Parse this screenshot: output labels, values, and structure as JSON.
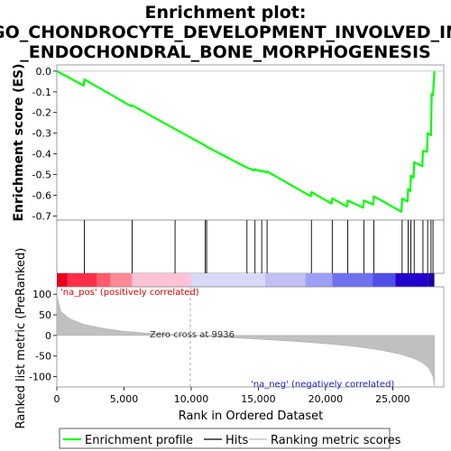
{
  "chart_data": {
    "type": "line",
    "title_lines": [
      "Enrichment plot:",
      "GO_CHONDROCYTE_DEVELOPMENT_INVOLVED_IN",
      "_ENDOCHONDRAL_BONE_MORPHOGENESIS"
    ],
    "xlabel": "Rank in Ordered Dataset",
    "ylabel_top": "Enrichment score (ES)",
    "ylabel_bottom": "Ranked list metric (PreRanked)",
    "xlim": [
      0,
      28800
    ],
    "x_ticks": [
      "0",
      "5,000",
      "10,000",
      "15,000",
      "20,000",
      "25,000"
    ],
    "x_tick_values": [
      0,
      5000,
      10000,
      15000,
      20000,
      25000
    ],
    "es_ylim": [
      -0.72,
      0.03
    ],
    "es_y_ticks": [
      "0.0",
      "-0.1",
      "-0.2",
      "-0.3",
      "-0.4",
      "-0.5",
      "-0.6",
      "-0.7"
    ],
    "es_y_tick_values": [
      0.0,
      -0.1,
      -0.2,
      -0.3,
      -0.4,
      -0.5,
      -0.6,
      -0.7
    ],
    "metric_ylim": [
      -125,
      118
    ],
    "metric_y_ticks": [
      "100",
      "50",
      "0",
      "-50",
      "-100"
    ],
    "metric_y_tick_values": [
      100,
      50,
      0,
      -50,
      -100
    ],
    "series": [
      {
        "name": "Enrichment profile",
        "color": "#00ff00",
        "x": [
          0,
          2000,
          2050,
          5550,
          5600,
          8800,
          11050,
          11150,
          14100,
          14700,
          14750,
          15200,
          15250,
          15600,
          15650,
          18900,
          18950,
          20450,
          20500,
          21600,
          21650,
          22800,
          22850,
          23550,
          23600,
          25650,
          25700,
          26100,
          26150,
          26300,
          26350,
          26550,
          26600,
          27200,
          27250,
          27550,
          27600,
          27850,
          27900,
          28000,
          28100
        ],
        "y": [
          0.0,
          -0.07,
          -0.04,
          -0.17,
          -0.165,
          -0.28,
          -0.36,
          -0.365,
          -0.465,
          -0.48,
          -0.475,
          -0.485,
          -0.48,
          -0.49,
          -0.485,
          -0.605,
          -0.585,
          -0.64,
          -0.615,
          -0.655,
          -0.625,
          -0.66,
          -0.625,
          -0.645,
          -0.605,
          -0.68,
          -0.615,
          -0.63,
          -0.57,
          -0.58,
          -0.505,
          -0.515,
          -0.44,
          -0.46,
          -0.385,
          -0.39,
          -0.3,
          -0.31,
          -0.11,
          -0.115,
          0.0
        ]
      }
    ],
    "hits": [
      2050,
      5600,
      8800,
      11050,
      11150,
      14150,
      14750,
      15250,
      15650,
      18950,
      20500,
      21650,
      22850,
      23600,
      25700,
      26150,
      26350,
      26600,
      27250,
      27600,
      27850,
      28000
    ],
    "zero_cross": 9936,
    "zero_cross_label": "Zero cross at 9936",
    "pos_label": "'na_pos' (positively correlated)",
    "neg_label": "'na_neg' (negatively correlated)",
    "colorbar": [
      {
        "x0": 0,
        "x1": 800,
        "color": "#e8001c"
      },
      {
        "x0": 800,
        "x1": 3000,
        "color": "#ff2d47"
      },
      {
        "x0": 3000,
        "x1": 4000,
        "color": "#ff5a6e"
      },
      {
        "x0": 4000,
        "x1": 5600,
        "color": "#ff8a97"
      },
      {
        "x0": 5600,
        "x1": 10000,
        "color": "#ffc2d6"
      },
      {
        "x0": 10000,
        "x1": 15500,
        "color": "#d8d8f8"
      },
      {
        "x0": 15500,
        "x1": 18500,
        "color": "#c0c0f5"
      },
      {
        "x0": 18500,
        "x1": 20500,
        "color": "#9e9ef5"
      },
      {
        "x0": 20500,
        "x1": 23500,
        "color": "#7070ee"
      },
      {
        "x0": 23500,
        "x1": 25200,
        "color": "#4f4fe8"
      },
      {
        "x0": 25200,
        "x1": 27600,
        "color": "#2200cc"
      },
      {
        "x0": 27600,
        "x1": 28100,
        "color": "#1a00a8"
      }
    ],
    "metric_curve": {
      "n": 28100,
      "points": [
        [
          0,
          98
        ],
        [
          300,
          58
        ],
        [
          1000,
          40
        ],
        [
          2000,
          27
        ],
        [
          3500,
          17
        ],
        [
          5000,
          10
        ],
        [
          7000,
          5
        ],
        [
          9936,
          0
        ],
        [
          12000,
          -4
        ],
        [
          15000,
          -9
        ],
        [
          18000,
          -15
        ],
        [
          20000,
          -20
        ],
        [
          22000,
          -26
        ],
        [
          24000,
          -35
        ],
        [
          25500,
          -45
        ],
        [
          26500,
          -55
        ],
        [
          27200,
          -66
        ],
        [
          27700,
          -80
        ],
        [
          28000,
          -100
        ],
        [
          28100,
          -122
        ]
      ]
    },
    "legend": [
      {
        "label": "Enrichment profile",
        "color": "#00ff00"
      },
      {
        "label": "Hits",
        "color": "#000000"
      },
      {
        "label": "Ranking metric scores",
        "color": "#bbbbbb"
      }
    ]
  }
}
